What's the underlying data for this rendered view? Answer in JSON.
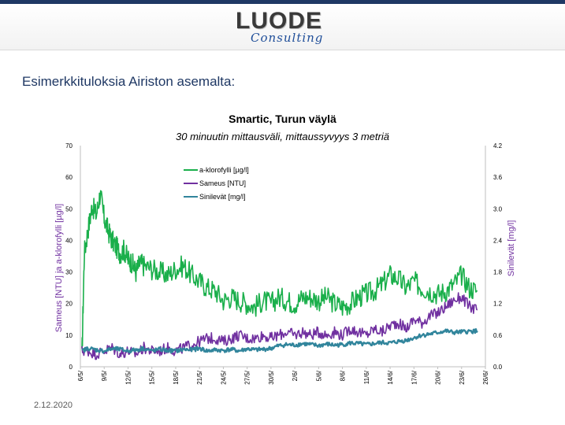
{
  "header": {
    "logo_main": "LUODE",
    "logo_sub": "Consulting"
  },
  "page": {
    "title": "Esimerkkituloksia Airiston asemalta:",
    "date": "2.12.2020"
  },
  "colors": {
    "chlorophyll": "#1aaf4b",
    "turbidity": "#7030a0",
    "bluegreen": "#31859c",
    "brand": "#1f3864"
  },
  "chart_data": {
    "type": "line",
    "title": "Smartic, Turun väylä",
    "subtitle": "30 minuutin mittausväli, mittaussyvyys 3 metriä",
    "ylabel": "Sameus [NTU] ja a-klorofylli [µg/l]",
    "y2label": "Sinilevät [mg/l]",
    "ylim": [
      0,
      70
    ],
    "y2lim": [
      0,
      4.2
    ],
    "yticks": [
      "0",
      "10",
      "20",
      "30",
      "40",
      "50",
      "60",
      "70"
    ],
    "y2ticks": [
      "0.0",
      "0.6",
      "1.2",
      "1.8",
      "2.4",
      "3.0",
      "3.6",
      "4.2"
    ],
    "xticks": [
      "6/5/",
      "9/5/",
      "12/5/",
      "15/5/",
      "18/5/",
      "21/5/",
      "24/5/",
      "27/5/",
      "30/5/",
      "2/6/",
      "5/6/",
      "8/6/",
      "11/6/",
      "14/6/",
      "17/6/",
      "20/6/",
      "23/6/",
      "26/6/"
    ],
    "xlim_days": [
      0,
      51
    ],
    "legend": {
      "position": "top-center",
      "entries": [
        "a-klorofylli [µg/l]",
        "Sameus [NTU]",
        "Sinilevät [mg/l]"
      ]
    },
    "grid": false,
    "series": [
      {
        "name": "a-klorofylli [µg/l]",
        "axis": "left",
        "color": "#1aaf4b",
        "x": [
          0.2,
          0.5,
          1.0,
          1.5,
          2.0,
          2.5,
          3.0,
          3.5,
          4.0,
          4.5,
          5.0,
          5.5,
          6.0,
          6.5,
          7.0,
          7.5,
          8.0,
          9.0,
          10.0,
          11.0,
          12.0,
          13.0,
          14.0,
          15.0,
          16.0,
          17.0,
          18.0,
          19.0,
          20.0,
          21.0,
          22.0,
          23.0,
          24.0,
          25.0,
          26.0,
          27.0,
          28.0,
          29.0,
          30.0,
          31.0,
          32.0,
          33.0,
          34.0,
          35.0,
          36.0,
          37.0,
          38.0,
          39.0,
          40.0,
          41.0,
          42.0,
          43.0,
          44.0,
          45.0,
          46.0,
          47.0,
          48.0,
          49.0,
          50.0
        ],
        "y": [
          3,
          36,
          44,
          51,
          48,
          55,
          47,
          43,
          40,
          38,
          36,
          37,
          34,
          33,
          30,
          33,
          32,
          31,
          30,
          29,
          31,
          32,
          29,
          27,
          25,
          24,
          21,
          22,
          21,
          20,
          19,
          21,
          20,
          22,
          21,
          20,
          22,
          22,
          21,
          22,
          20,
          19,
          20,
          22,
          23,
          24,
          26,
          29,
          28,
          25,
          27,
          25,
          24,
          23,
          24,
          26,
          29,
          25,
          24
        ]
      },
      {
        "name": "Sameus [NTU]",
        "axis": "left",
        "color": "#7030a0",
        "x": [
          0.2,
          1.0,
          2.0,
          3.0,
          4.0,
          5.0,
          6.0,
          7.0,
          8.0,
          9.0,
          10.0,
          11.0,
          12.0,
          13.0,
          14.0,
          15.0,
          16.0,
          17.0,
          18.0,
          19.0,
          20.0,
          21.0,
          22.0,
          23.0,
          24.0,
          25.0,
          26.0,
          27.0,
          28.0,
          29.0,
          30.0,
          31.0,
          32.0,
          33.0,
          34.0,
          35.0,
          36.0,
          37.0,
          38.0,
          39.0,
          40.0,
          41.0,
          42.0,
          43.0,
          44.0,
          45.0,
          46.0,
          47.0,
          48.0,
          49.0,
          50.0
        ],
        "y": [
          5,
          5,
          4,
          5,
          6,
          4,
          5,
          4,
          6,
          5,
          5,
          6,
          5,
          6,
          7,
          8,
          9,
          9,
          8,
          9,
          10,
          9,
          9,
          10,
          9,
          10,
          11,
          10,
          11,
          10,
          11,
          10,
          11,
          10,
          12,
          11,
          10,
          12,
          11,
          13,
          14,
          12,
          15,
          14,
          16,
          17,
          19,
          21,
          22,
          19,
          18
        ]
      },
      {
        "name": "Sinilevät [mg/l]",
        "axis": "right",
        "color": "#31859c",
        "x": [
          0.2,
          1.0,
          2.0,
          3.0,
          4.0,
          5.0,
          6.0,
          7.0,
          8.0,
          9.0,
          10.0,
          11.0,
          12.0,
          13.0,
          14.0,
          15.0,
          16.0,
          17.0,
          18.0,
          19.0,
          20.0,
          21.0,
          22.0,
          23.0,
          24.0,
          25.0,
          26.0,
          27.0,
          28.0,
          29.0,
          30.0,
          31.0,
          32.0,
          33.0,
          34.0,
          35.0,
          36.0,
          37.0,
          38.0,
          39.0,
          40.0,
          41.0,
          42.0,
          43.0,
          44.0,
          45.0,
          46.0,
          47.0,
          48.0,
          49.0,
          50.0
        ],
        "y": [
          0.3,
          0.35,
          0.32,
          0.3,
          0.34,
          0.33,
          0.3,
          0.32,
          0.35,
          0.3,
          0.33,
          0.31,
          0.3,
          0.33,
          0.32,
          0.35,
          0.3,
          0.32,
          0.31,
          0.33,
          0.3,
          0.34,
          0.32,
          0.33,
          0.35,
          0.4,
          0.42,
          0.41,
          0.44,
          0.42,
          0.4,
          0.43,
          0.41,
          0.42,
          0.45,
          0.44,
          0.42,
          0.44,
          0.46,
          0.45,
          0.48,
          0.5,
          0.55,
          0.6,
          0.62,
          0.65,
          0.68,
          0.65,
          0.66,
          0.67,
          0.68
        ]
      }
    ]
  }
}
